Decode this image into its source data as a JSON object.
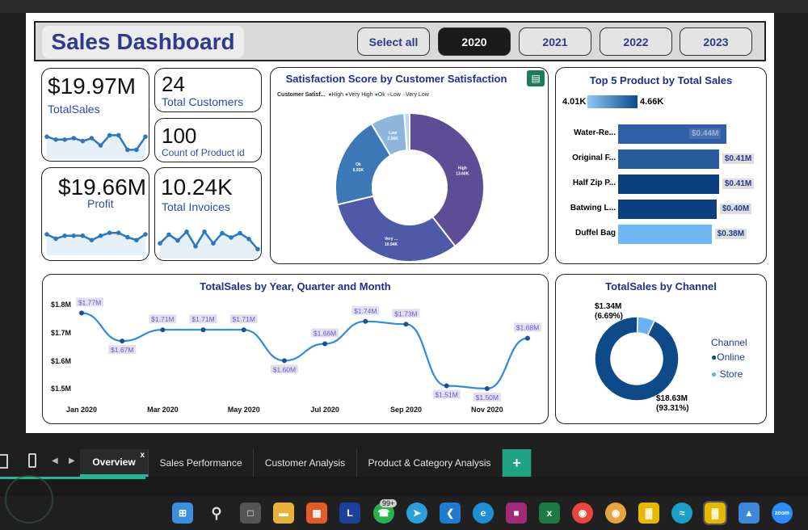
{
  "header": {
    "title": "Sales Dashboard",
    "buttons": [
      "Select all",
      "2020",
      "2021",
      "2022",
      "2023"
    ],
    "selected": "2020"
  },
  "kpis": {
    "total_sales": {
      "value": "$19.97M",
      "label": "TotalSales"
    },
    "total_customers": {
      "value": "24",
      "label": "Total Customers"
    },
    "product_count": {
      "value": "100",
      "label": "Count of Product id"
    },
    "profit": {
      "value": "$19.66M",
      "label": "Profit"
    },
    "total_invoices": {
      "value": "10.24K",
      "label": "Total Invoices"
    }
  },
  "sparklines": {
    "total_sales": [
      0.55,
      0.45,
      0.45,
      0.5,
      0.4,
      0.5,
      0.25,
      0.6,
      0.6,
      0.1,
      0.1,
      0.55
    ],
    "profit": [
      0.5,
      0.35,
      0.45,
      0.45,
      0.45,
      0.3,
      0.45,
      0.55,
      0.55,
      0.4,
      0.3,
      0.5
    ],
    "total_invoices": [
      0.3,
      0.6,
      0.4,
      0.7,
      0.2,
      0.7,
      0.3,
      0.65,
      0.5,
      0.65,
      0.45,
      0.1
    ]
  },
  "satisfaction": {
    "title": "Satisfaction Score by Customer Satisfaction",
    "legend_title": "Customer Satisf...",
    "legend": [
      {
        "name": "High",
        "color": "#5c4d96"
      },
      {
        "name": "Very High",
        "color": "#4e5aa8"
      },
      {
        "name": "Ok",
        "color": "#3c78b5"
      },
      {
        "name": "Low",
        "color": "#8fb5dd"
      },
      {
        "name": "Very Low",
        "color": "#c3d7ee"
      }
    ],
    "slice_labels": {
      "high": "High\n13.60K",
      "veryhigh": "Very ...\n10.94K",
      "ok": "Ok\n6.93K",
      "low": "Low\n2.56K"
    }
  },
  "top5": {
    "title": "Top 5 Product by Total Sales",
    "range_min": "4.01K",
    "range_max": "4.66K",
    "products": [
      {
        "name": "Water-Re...",
        "label": "$0.44M",
        "value": 0.44,
        "color": "#2e5fa8"
      },
      {
        "name": "Original F...",
        "label": "$0.41M",
        "value": 0.41,
        "color": "#285a9e"
      },
      {
        "name": "Half Zip P...",
        "label": "$0.41M",
        "value": 0.41,
        "color": "#0b3f7f"
      },
      {
        "name": "Batwing L...",
        "label": "$0.40M",
        "value": 0.4,
        "color": "#0b3f7f"
      },
      {
        "name": "Duffel Bag",
        "label": "$0.38M",
        "value": 0.38,
        "color": "#6fb6f4"
      }
    ]
  },
  "linechart": {
    "title": "TotalSales by Year, Quarter and Month",
    "yticks": [
      "$1.8M",
      "$1.7M",
      "$1.6M",
      "$1.5M"
    ],
    "xticks": [
      "Jan 2020",
      "Mar 2020",
      "May 2020",
      "Jul 2020",
      "Sep 2020",
      "Nov 2020"
    ]
  },
  "chart_data": {
    "type": "line",
    "title": "TotalSales by Year, Quarter and Month",
    "x": [
      "Jan 2020",
      "Feb 2020",
      "Mar 2020",
      "Apr 2020",
      "May 2020",
      "Jun 2020",
      "Jul 2020",
      "Aug 2020",
      "Sep 2020",
      "Oct 2020",
      "Nov 2020",
      "Dec 2020"
    ],
    "values": [
      1.77,
      1.67,
      1.71,
      1.71,
      1.71,
      1.6,
      1.66,
      1.74,
      1.73,
      1.51,
      1.5,
      1.68
    ],
    "labels": [
      "$1.77M",
      "$1.67M",
      "$1.71M",
      "$1.71M",
      "$1.71M",
      "$1.60M",
      "$1.66M",
      "$1.74M",
      "$1.73M",
      "$1.51M",
      "$1.50M",
      "$1.68M"
    ],
    "ylim": [
      1.5,
      1.8
    ],
    "color": "#2b8be0"
  },
  "channel": {
    "title": "TotalSales by Channel",
    "legend_title": "Channel",
    "items": [
      {
        "name": "Online",
        "label": "$18.63M",
        "pct": "(93.31%)",
        "share": 0.9331,
        "color": "#0e4a8a"
      },
      {
        "name": "Store",
        "label": "$1.34M",
        "pct": "(6.69%)",
        "share": 0.0669,
        "color": "#6ab0f5"
      }
    ]
  },
  "tabs": [
    "Overview",
    "Sales Performance",
    "Customer Analysis",
    "Product & Category Analysis"
  ],
  "tab_add": "+",
  "tab_close": "x",
  "taskbar": {
    "badge": "99+",
    "letter_icon": "L",
    "excel_letter": "x",
    "zoom_label": "zoom"
  }
}
